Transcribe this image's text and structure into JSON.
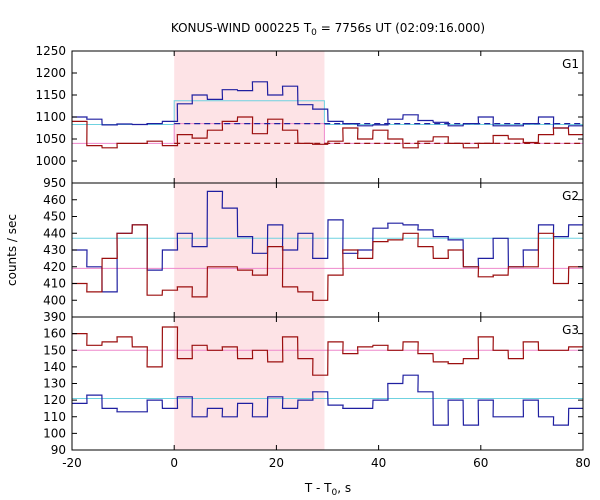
{
  "chart_data": {
    "type": "line",
    "title": "KONUS-WIND 000225 T0 = 7756s UT (02:09:16.000)",
    "title_parts": {
      "pre": "KONUS-WIND 000225 T",
      "sub": "0",
      "post": " = 7756s UT (02:09:16.000)"
    },
    "xlabel": "T - T0, s",
    "xlabel_parts": {
      "pre": "T - T",
      "sub": "0",
      "post": ", s"
    },
    "ylabel": "counts / sec",
    "xlim": [
      -20,
      80
    ],
    "xticks": [
      "-20",
      "0",
      "20",
      "40",
      "60",
      "80"
    ],
    "grid": false,
    "step_width_s": 2.944,
    "highlight_interval": [
      0,
      29.4
    ],
    "colors": {
      "blue": "#1f1fa0",
      "red": "#9b0f0f",
      "cyan": "#6fd2e0",
      "pink": "#ee88cc",
      "highlight": "#fde3e6"
    },
    "panels": [
      {
        "label": "G1",
        "ylim": [
          950,
          1250
        ],
        "yticks": [
          "950",
          "1000",
          "1050",
          "1100",
          "1150",
          "1200",
          "1250"
        ],
        "series": [
          {
            "color": "blue",
            "x": [
              -20.0,
              -17.1,
              -14.1,
              -11.2,
              -8.2,
              -5.3,
              -2.3,
              0.6,
              3.5,
              6.5,
              9.4,
              12.4,
              15.3,
              18.3,
              21.2,
              24.2,
              27.1,
              30.1,
              33.0,
              35.9,
              38.9,
              41.8,
              44.8,
              47.7,
              50.7,
              53.6,
              56.6,
              59.5,
              62.4,
              65.4,
              68.3,
              71.3,
              74.2,
              77.2
            ],
            "values": [
              1100,
              1095,
              1082,
              1084,
              1083,
              1085,
              1090,
              1130,
              1150,
              1140,
              1162,
              1160,
              1180,
              1150,
              1170,
              1128,
              1118,
              1090,
              1085,
              1080,
              1082,
              1095,
              1105,
              1092,
              1088,
              1080,
              1085,
              1100,
              1080,
              1080,
              1085,
              1100,
              1075,
              1080
            ]
          },
          {
            "color": "red",
            "x": [
              -20.0,
              -17.1,
              -14.1,
              -11.2,
              -8.2,
              -5.3,
              -2.3,
              0.6,
              3.5,
              6.5,
              9.4,
              12.4,
              15.3,
              18.3,
              21.2,
              24.2,
              27.1,
              30.1,
              33.0,
              35.9,
              38.9,
              41.8,
              44.8,
              47.7,
              50.7,
              53.6,
              56.6,
              59.5,
              62.4,
              65.4,
              68.3,
              71.3,
              74.2,
              77.2
            ],
            "values": [
              1090,
              1035,
              1030,
              1040,
              1040,
              1045,
              1035,
              1060,
              1052,
              1070,
              1090,
              1100,
              1062,
              1095,
              1070,
              1040,
              1038,
              1045,
              1075,
              1050,
              1070,
              1050,
              1030,
              1045,
              1055,
              1040,
              1030,
              1040,
              1058,
              1050,
              1042,
              1060,
              1075,
              1060
            ]
          }
        ],
        "fits": [
          {
            "color": "cyan",
            "x": [
              -20,
              0,
              0,
              29.4,
              29.4,
              80
            ],
            "values": [
              1083,
              1083,
              1137,
              1137,
              1083,
              1083
            ]
          },
          {
            "color": "pink",
            "x": [
              -20,
              0,
              0,
              29.4,
              29.4,
              80
            ],
            "values": [
              1040,
              1040,
              1085,
              1085,
              1040,
              1040
            ]
          }
        ],
        "dashed": [
          {
            "color": "blue",
            "x": [
              0,
              80
            ],
            "values": [
              1085,
              1085
            ]
          },
          {
            "color": "red",
            "x": [
              0,
              80
            ],
            "values": [
              1040,
              1040
            ]
          }
        ]
      },
      {
        "label": "G2",
        "ylim": [
          390,
          470
        ],
        "yticks": [
          "390",
          "400",
          "410",
          "420",
          "430",
          "440",
          "450",
          "460"
        ],
        "series": [
          {
            "color": "blue",
            "x": [
              -20.0,
              -17.1,
              -14.1,
              -11.2,
              -8.2,
              -5.3,
              -2.3,
              0.6,
              3.5,
              6.5,
              9.4,
              12.4,
              15.3,
              18.3,
              21.2,
              24.2,
              27.1,
              30.1,
              33.0,
              35.9,
              38.9,
              41.8,
              44.8,
              47.7,
              50.7,
              53.6,
              56.6,
              59.5,
              62.4,
              65.4,
              68.3,
              71.3,
              74.2,
              77.2
            ],
            "values": [
              430,
              420,
              405,
              440,
              445,
              418,
              430,
              440,
              432,
              465,
              455,
              438,
              428,
              445,
              430,
              440,
              425,
              448,
              428,
              430,
              443,
              446,
              445,
              442,
              438,
              436,
              420,
              425,
              437,
              420,
              430,
              445,
              438,
              445
            ]
          },
          {
            "color": "red",
            "x": [
              -20.0,
              -17.1,
              -14.1,
              -11.2,
              -8.2,
              -5.3,
              -2.3,
              0.6,
              3.5,
              6.5,
              9.4,
              12.4,
              15.3,
              18.3,
              21.2,
              24.2,
              27.1,
              30.1,
              33.0,
              35.9,
              38.9,
              41.8,
              44.8,
              47.7,
              50.7,
              53.6,
              56.6,
              59.5,
              62.4,
              65.4,
              68.3,
              71.3,
              74.2,
              77.2
            ],
            "values": [
              410,
              405,
              425,
              440,
              445,
              403,
              406,
              408,
              402,
              420,
              420,
              418,
              415,
              432,
              408,
              405,
              400,
              415,
              430,
              425,
              435,
              436,
              440,
              432,
              425,
              430,
              420,
              414,
              415,
              420,
              420,
              440,
              410,
              420
            ]
          }
        ],
        "fits": [
          {
            "color": "cyan",
            "x": [
              -20,
              80
            ],
            "values": [
              437,
              437
            ]
          },
          {
            "color": "pink",
            "x": [
              -20,
              80
            ],
            "values": [
              419,
              419
            ]
          }
        ],
        "dashed": []
      },
      {
        "label": "G3",
        "ylim": [
          90,
          170
        ],
        "yticks": [
          "90",
          "100",
          "110",
          "120",
          "130",
          "140",
          "150",
          "160"
        ],
        "series": [
          {
            "color": "red",
            "x": [
              -20.0,
              -17.1,
              -14.1,
              -11.2,
              -8.2,
              -5.3,
              -2.3,
              0.6,
              3.5,
              6.5,
              9.4,
              12.4,
              15.3,
              18.3,
              21.2,
              24.2,
              27.1,
              30.1,
              33.0,
              35.9,
              38.9,
              41.8,
              44.8,
              47.7,
              50.7,
              53.6,
              56.6,
              59.5,
              62.4,
              65.4,
              68.3,
              71.3,
              74.2,
              77.2
            ],
            "values": [
              160,
              153,
              155,
              158,
              152,
              140,
              164,
              145,
              153,
              150,
              152,
              145,
              150,
              143,
              158,
              145,
              135,
              155,
              148,
              152,
              153,
              150,
              155,
              148,
              143,
              142,
              145,
              158,
              150,
              145,
              155,
              150,
              150,
              152
            ]
          },
          {
            "color": "blue",
            "x": [
              -20.0,
              -17.1,
              -14.1,
              -11.2,
              -8.2,
              -5.3,
              -2.3,
              0.6,
              3.5,
              6.5,
              9.4,
              12.4,
              15.3,
              18.3,
              21.2,
              24.2,
              27.1,
              30.1,
              33.0,
              35.9,
              38.9,
              41.8,
              44.8,
              47.7,
              50.7,
              53.6,
              56.6,
              59.5,
              62.4,
              65.4,
              68.3,
              71.3,
              74.2,
              77.2
            ],
            "values": [
              118,
              123,
              115,
              113,
              113,
              120,
              115,
              122,
              110,
              115,
              110,
              118,
              110,
              122,
              115,
              120,
              125,
              117,
              115,
              115,
              120,
              130,
              135,
              125,
              105,
              120,
              105,
              120,
              110,
              110,
              120,
              110,
              105,
              115
            ]
          }
        ],
        "fits": [
          {
            "color": "pink",
            "x": [
              -20,
              80
            ],
            "values": [
              150,
              150
            ]
          },
          {
            "color": "cyan",
            "x": [
              -20,
              80
            ],
            "values": [
              121,
              121
            ]
          }
        ],
        "dashed": []
      }
    ]
  }
}
